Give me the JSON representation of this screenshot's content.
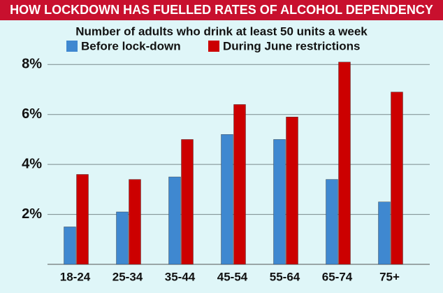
{
  "chart_data": {
    "type": "bar",
    "title": "HOW LOCKDOWN HAS FUELLED RATES OF ALCOHOL DEPENDENCY",
    "subtitle": "Number of adults who drink at least 50 units a week",
    "categories": [
      "18-24",
      "25-34",
      "35-44",
      "45-54",
      "55-64",
      "65-74",
      "75+"
    ],
    "series": [
      {
        "name": "Before lock-down",
        "color": "#3f88d0",
        "values": [
          1.5,
          2.1,
          3.5,
          5.2,
          5.0,
          3.4,
          2.5
        ]
      },
      {
        "name": "During June restrictions",
        "color": "#cc0000",
        "values": [
          3.6,
          3.4,
          5.0,
          6.4,
          5.9,
          8.1,
          6.9
        ]
      }
    ],
    "ylim": [
      0,
      8.4
    ],
    "yticks": [
      {
        "value": 2,
        "label": "2%"
      },
      {
        "value": 4,
        "label": "4%"
      },
      {
        "value": 6,
        "label": "6%"
      },
      {
        "value": 8,
        "label": "8%"
      }
    ],
    "grid": true
  }
}
